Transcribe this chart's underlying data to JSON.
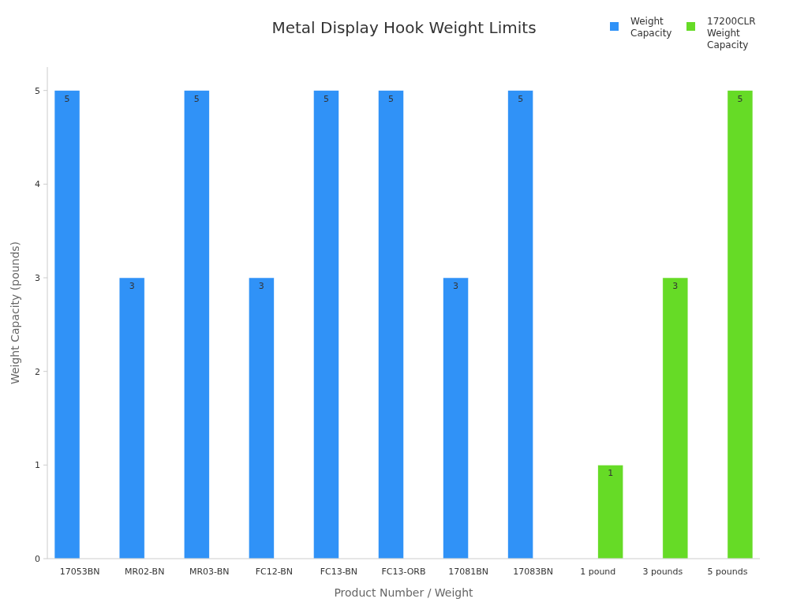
{
  "chart_data": {
    "type": "bar",
    "title": "Metal Display Hook Weight Limits",
    "xlabel": "Product Number / Weight",
    "ylabel": "Weight Capacity (pounds)",
    "categories": [
      "17053BN",
      "MR02-BN",
      "MR03-BN",
      "FC12-BN",
      "FC13-BN",
      "FC13-ORB",
      "17081BN",
      "17083BN",
      "1 pound",
      "3 pounds",
      "5 pounds"
    ],
    "series": [
      {
        "name": "Weight Capacity",
        "color": "#3092f7",
        "values": [
          5,
          3,
          5,
          3,
          5,
          5,
          3,
          5,
          null,
          null,
          null
        ]
      },
      {
        "name": "17200CLR Weight Capacity",
        "color": "#66db26",
        "values": [
          null,
          null,
          null,
          null,
          null,
          null,
          null,
          null,
          1,
          3,
          5
        ]
      }
    ],
    "ylim": [
      0,
      5.25
    ],
    "yticks": [
      0,
      1,
      2,
      3,
      4,
      5
    ],
    "data_labels": true,
    "legend": "top right",
    "grid": false
  }
}
